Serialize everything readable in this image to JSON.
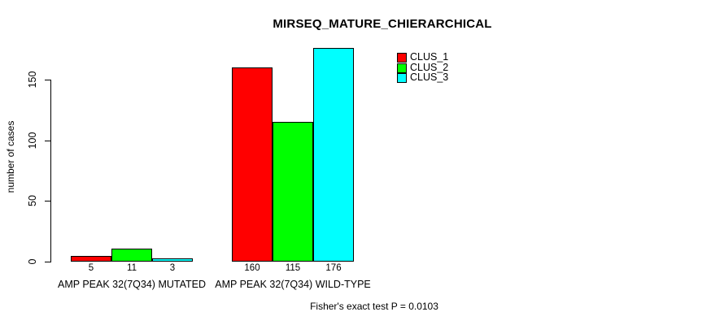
{
  "chart_data": {
    "type": "bar",
    "title": "MIRSEQ_MATURE_CHIERARCHICAL",
    "xlabel": "",
    "ylabel": "number of cases",
    "ylim": [
      0,
      176
    ],
    "yticks": [
      0,
      50,
      100,
      150
    ],
    "grid": false,
    "legend_position": "top-right",
    "categories": [
      "AMP PEAK 32(7Q34) MUTATED",
      "AMP PEAK 32(7Q34) WILD-TYPE"
    ],
    "series": [
      {
        "name": "CLUS_1",
        "color": "#ff0000",
        "values": [
          5,
          160
        ]
      },
      {
        "name": "CLUS_2",
        "color": "#00ff00",
        "values": [
          11,
          115
        ]
      },
      {
        "name": "CLUS_3",
        "color": "#00ffff",
        "values": [
          3,
          176
        ]
      }
    ],
    "bar_value_labels": [
      [
        "5",
        "11",
        "3"
      ],
      [
        "160",
        "115",
        "176"
      ]
    ],
    "annotation": "Fisher's exact test P = 0.0103"
  },
  "colors": {
    "background": "#ffffff",
    "axis": "#000000",
    "text": "#000000",
    "bar_border": "#000000",
    "clus_1": "#ff0000",
    "clus_2": "#00ff00",
    "clus_3": "#00ffff"
  }
}
